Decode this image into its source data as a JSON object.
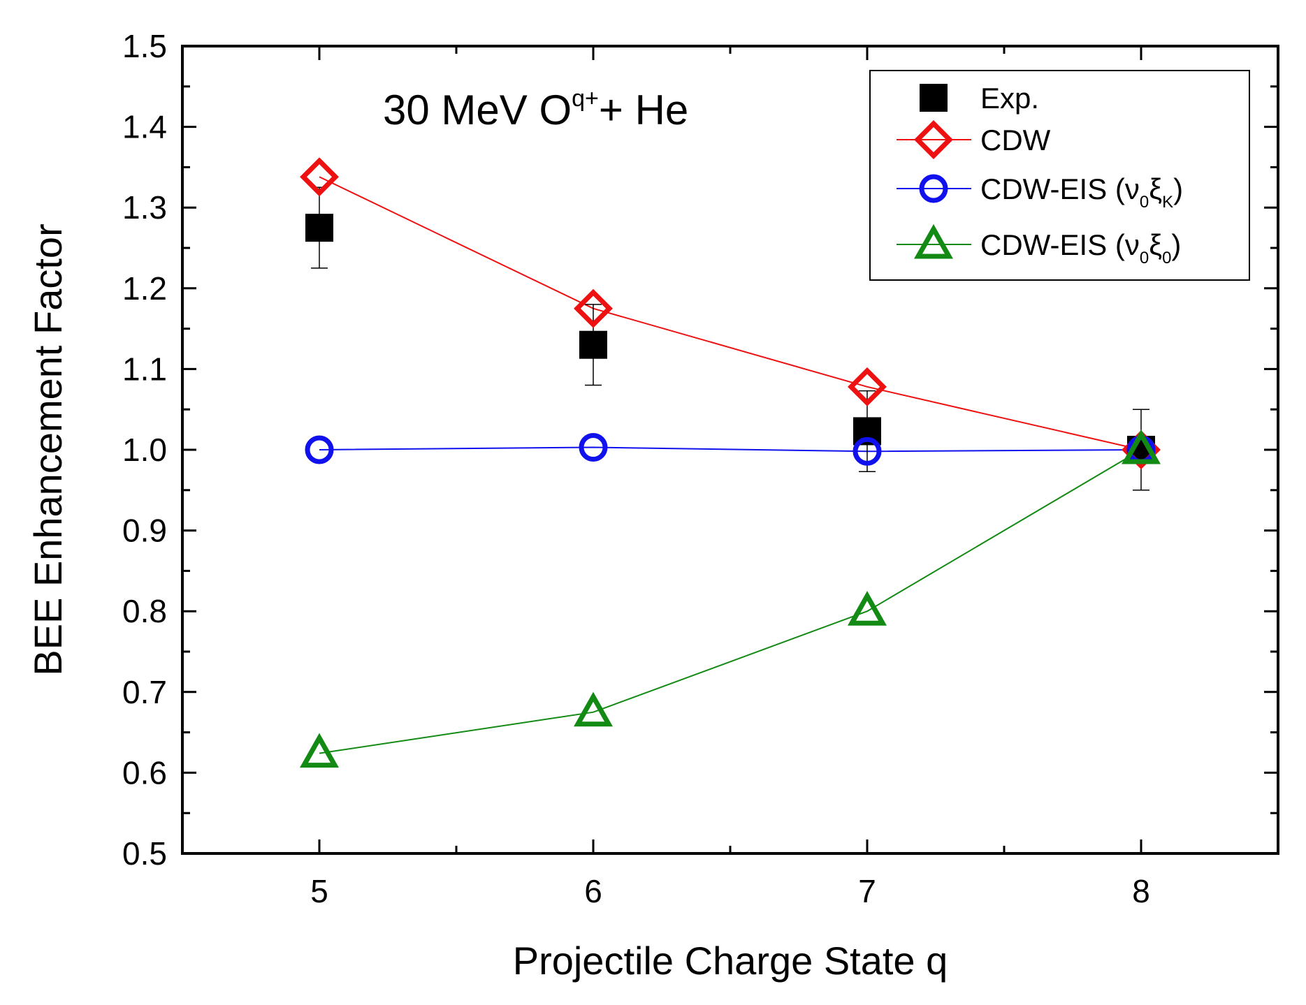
{
  "chart_data": {
    "type": "scatter",
    "annotation": {
      "prefix": "30 MeV O",
      "superscript": "q+",
      "suffix": "+ He"
    },
    "xlabel": "Projectile Charge State q",
    "ylabel": "BEE Enhancement Factor",
    "xlim": [
      4.5,
      8.5
    ],
    "ylim": [
      0.5,
      1.5
    ],
    "x_ticks": [
      "5",
      "6",
      "7",
      "8"
    ],
    "y_ticks": [
      "0.5",
      "0.6",
      "0.7",
      "0.8",
      "0.9",
      "1.0",
      "1.1",
      "1.2",
      "1.3",
      "1.4",
      "1.5"
    ],
    "legend_position": "top-right",
    "grid": false,
    "x": [
      5,
      6,
      7,
      8
    ],
    "series": [
      {
        "name": "Exp.",
        "marker": "filled-square",
        "color": "#000000",
        "line": false,
        "values": [
          1.275,
          1.13,
          1.023,
          1.0
        ],
        "errors": [
          0.05,
          0.05,
          0.05,
          0.05
        ]
      },
      {
        "name": "CDW",
        "marker": "open-diamond",
        "color": "#ee1111",
        "line": true,
        "values": [
          1.338,
          1.175,
          1.078,
          1.0
        ]
      },
      {
        "name": "CDW-EIS (ν0ξK)",
        "marker": "open-circle",
        "color": "#1111ee",
        "line": true,
        "values": [
          1.0,
          1.003,
          0.998,
          1.0
        ]
      },
      {
        "name": "CDW-EIS (ν0ξ0)",
        "marker": "open-triangle",
        "color": "#138a13",
        "line": true,
        "values": [
          0.624,
          0.675,
          0.8,
          1.0
        ]
      }
    ],
    "legend": [
      {
        "base": "Exp.",
        "nu": "",
        "nu_sub": "",
        "xi": "",
        "xi_sub": "",
        "close": ""
      },
      {
        "base": "CDW",
        "nu": "",
        "nu_sub": "",
        "xi": "",
        "xi_sub": "",
        "close": ""
      },
      {
        "base": "CDW-EIS (",
        "nu": "ν",
        "nu_sub": "0",
        "xi": "ξ",
        "xi_sub": "K",
        "close": ")"
      },
      {
        "base": "CDW-EIS (",
        "nu": "ν",
        "nu_sub": "0",
        "xi": "ξ",
        "xi_sub": "0",
        "close": ")"
      }
    ]
  }
}
